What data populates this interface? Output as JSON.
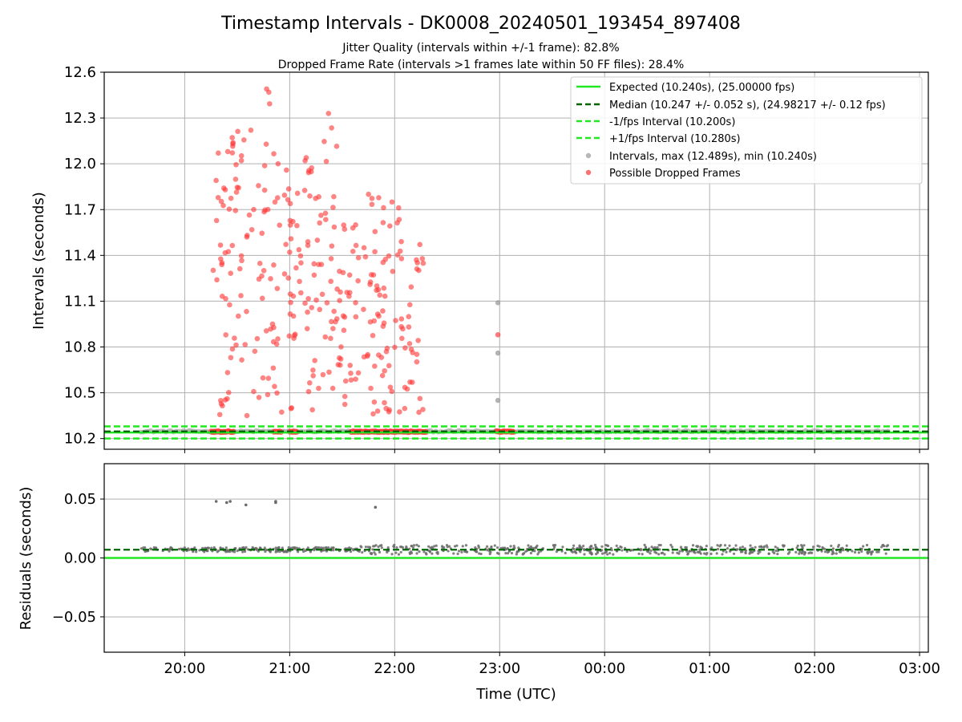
{
  "figure": {
    "title": "Timestamp Intervals - DK0008_20240501_193454_897408",
    "subtitle_1": "Jitter Quality (intervals within +/-1 frame): 82.8%",
    "subtitle_2": "Dropped Frame Rate (intervals >1 frames late within 50 FF files): 28.4%",
    "xlabel": "Time (UTC)"
  },
  "colors": {
    "expected": "#22e822",
    "median": "#006400",
    "interval_bounds": "#22e822",
    "intervals": "#999999",
    "dropped": "#ff3333",
    "residual_points": "#6b6b6b",
    "grid": "#b0b0b0"
  },
  "chart_data": [
    {
      "type": "scatter",
      "name": "intervals-panel",
      "ylabel": "Intervals (seconds)",
      "xlim": [
        "19:14",
        "03:05"
      ],
      "ylim": [
        10.13,
        12.6
      ],
      "x_ticks": [
        "20:00",
        "21:00",
        "22:00",
        "23:00",
        "00:00",
        "01:00",
        "02:00",
        "03:00"
      ],
      "y_ticks": [
        "10.2",
        "10.5",
        "10.8",
        "11.1",
        "11.4",
        "11.7",
        "12.0",
        "12.3",
        "12.6"
      ],
      "grid": true,
      "legend_position": "top-right",
      "legend": [
        "Expected (10.240s), (25.00000 fps)",
        "Median (10.247 +/- 0.052 s), (24.98217 +/- 0.12 fps)",
        "-1/fps Interval (10.200s)",
        "+1/fps Interval (10.280s)",
        "Intervals, max (12.489s), min (10.240s)",
        "Possible Dropped Frames"
      ],
      "lines": {
        "expected": 10.24,
        "median": 10.247,
        "minus_one_fps": 10.2,
        "plus_one_fps": 10.28
      },
      "x_range": [
        "19:35",
        "02:42"
      ],
      "series": [
        {
          "name": "Intervals, max (12.489s), min (10.240s)",
          "baseline_value": 10.247,
          "extra_points": [
            {
              "x": "22:59",
              "y": 11.09
            },
            {
              "x": "22:59",
              "y": 10.76
            },
            {
              "x": "22:59",
              "y": 10.45
            }
          ]
        },
        {
          "name": "Possible Dropped Frames",
          "clusters": [
            {
              "start": "20:16",
              "end": "20:27",
              "ymin": 10.24,
              "ymax": 12.08
            },
            {
              "start": "20:27",
              "end": "20:39",
              "ymin": 10.25,
              "ymax": 12.22
            },
            {
              "start": "20:39",
              "end": "20:51",
              "ymin": 10.24,
              "ymax": 12.49
            },
            {
              "start": "20:51",
              "end": "21:03",
              "ymin": 10.24,
              "ymax": 12.0
            },
            {
              "start": "21:03",
              "end": "21:15",
              "ymin": 10.24,
              "ymax": 12.04
            },
            {
              "start": "21:15",
              "end": "21:27",
              "ymin": 10.24,
              "ymax": 12.33
            },
            {
              "start": "21:27",
              "end": "21:39",
              "ymin": 10.25,
              "ymax": 11.6
            },
            {
              "start": "21:39",
              "end": "21:51",
              "ymin": 10.24,
              "ymax": 11.8
            },
            {
              "start": "21:51",
              "end": "22:03",
              "ymin": 10.24,
              "ymax": 11.75
            },
            {
              "start": "22:03",
              "end": "22:17",
              "ymin": 10.24,
              "ymax": 11.49
            }
          ],
          "extra_points": [
            {
              "x": "22:59",
              "y": 10.88
            }
          ],
          "baseline_runs": [
            {
              "start": "20:15",
              "end": "20:28",
              "y": 10.245
            },
            {
              "start": "20:51",
              "end": "20:55",
              "y": 10.245
            },
            {
              "start": "21:00",
              "end": "21:04",
              "y": 10.245
            },
            {
              "start": "21:35",
              "end": "22:18",
              "y": 10.245
            },
            {
              "start": "22:58",
              "end": "23:08",
              "y": 10.245
            }
          ]
        }
      ]
    },
    {
      "type": "scatter",
      "name": "residuals-panel",
      "ylabel": "Residuals (seconds)",
      "xlim": [
        "19:14",
        "03:05"
      ],
      "ylim": [
        -0.08,
        0.08
      ],
      "y_ticks": [
        "0.05",
        "0.00",
        "−0.05"
      ],
      "grid": true,
      "lines": {
        "expected": 0.0,
        "median": 0.007
      },
      "series": [
        {
          "name": "Residuals",
          "x_range": [
            "19:35",
            "02:42"
          ],
          "baseline_value": 0.007,
          "outliers": [
            {
              "x": "20:18",
              "y": 0.048
            },
            {
              "x": "20:24",
              "y": 0.047
            },
            {
              "x": "20:26",
              "y": 0.048
            },
            {
              "x": "20:35",
              "y": 0.045
            },
            {
              "x": "20:52",
              "y": 0.048
            },
            {
              "x": "20:52",
              "y": 0.047
            },
            {
              "x": "21:49",
              "y": 0.043
            }
          ]
        }
      ]
    }
  ]
}
